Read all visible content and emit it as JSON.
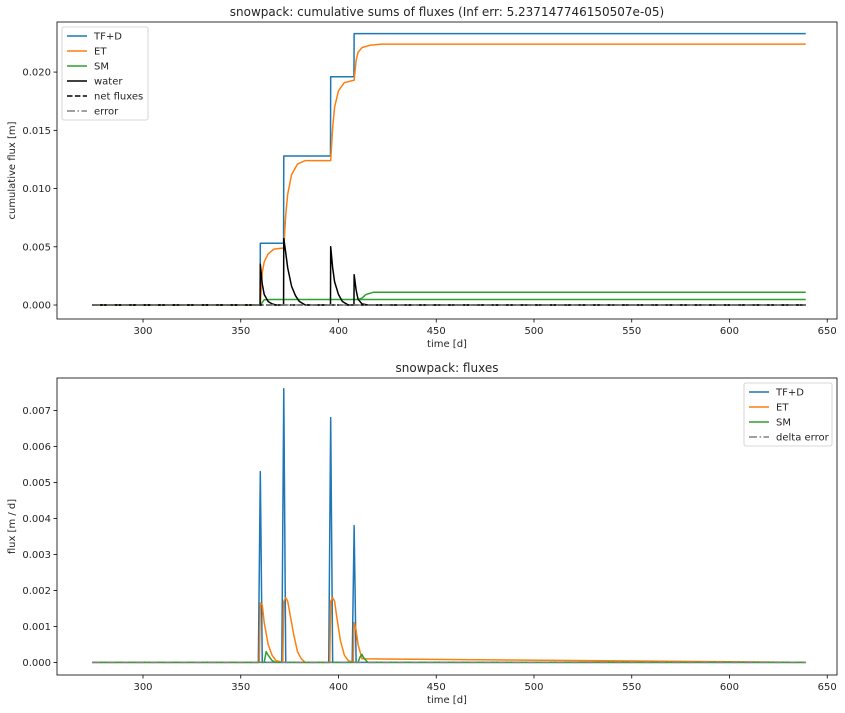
{
  "chart_data": [
    {
      "type": "line",
      "title": "snowpack: cumulative sums of fluxes (Inf err: 5.237147746150507e-05)",
      "xlabel": "time [d]",
      "ylabel": "cumulative flux [m]",
      "xlim": [
        256,
        655
      ],
      "ylim": [
        -0.0012,
        0.0243
      ],
      "xticks": [
        300,
        350,
        400,
        450,
        500,
        550,
        600,
        650
      ],
      "yticks": [
        0.0,
        0.005,
        0.01,
        0.015,
        0.02
      ],
      "ytick_labels": [
        "0.000",
        "0.005",
        "0.010",
        "0.015",
        "0.020"
      ],
      "grid": false,
      "legend_position": "upper left",
      "series": [
        {
          "name": "TF+D",
          "color": "#1f77b4",
          "dash": "solid",
          "x": [
            274,
            359.9,
            360,
            371.9,
            372,
            395.9,
            396,
            407.9,
            408,
            639
          ],
          "y": [
            0,
            0,
            0.0053,
            0.0053,
            0.0128,
            0.0128,
            0.0196,
            0.0196,
            0.0233,
            0.0233
          ]
        },
        {
          "name": "ET",
          "color": "#ff7f0e",
          "dash": "solid",
          "x": [
            274,
            359.9,
            360,
            361,
            362,
            364,
            367,
            371.9,
            372,
            373,
            374,
            376,
            379,
            383,
            395.9,
            396,
            397,
            398,
            400,
            403,
            407.9,
            408,
            409,
            410,
            412,
            416,
            422,
            430,
            639
          ],
          "y": [
            0,
            0,
            0,
            0.0028,
            0.0037,
            0.0044,
            0.0048,
            0.0049,
            0.0049,
            0.0077,
            0.0095,
            0.0112,
            0.0121,
            0.0124,
            0.0124,
            0.0124,
            0.0152,
            0.017,
            0.0184,
            0.0191,
            0.0193,
            0.0193,
            0.021,
            0.0217,
            0.0221,
            0.0223,
            0.0224,
            0.0224,
            0.0224
          ]
        },
        {
          "name": "SM",
          "color": "#2ca02c",
          "dash": "solid",
          "x": [
            274,
            360,
            362,
            366,
            639
          ],
          "y": [
            0,
            0,
            0.00045,
            0.00047,
            0.00047
          ],
          "x2": [
            410,
            412,
            414,
            418,
            639
          ],
          "y2": [
            0.00047,
            0.0006,
            0.0009,
            0.0011,
            0.0011
          ]
        },
        {
          "name": "water",
          "color": "#000000",
          "dash": "solid",
          "x": [
            274,
            359.9,
            360,
            361,
            362,
            364,
            366,
            368,
            371.9,
            372,
            373,
            374,
            376,
            378,
            380,
            383,
            395.9,
            396,
            397,
            398,
            400,
            402,
            405,
            407.9,
            408,
            409,
            410,
            412,
            415,
            639
          ],
          "y": [
            0,
            0,
            0.0035,
            0.0018,
            0.0009,
            0.0003,
            0.0001,
            0.0,
            0.0,
            0.0057,
            0.0045,
            0.0032,
            0.0016,
            0.0008,
            0.0003,
            0.0,
            0.0,
            0.005,
            0.0032,
            0.002,
            0.0009,
            0.0003,
            0.0,
            0.0,
            0.0026,
            0.0013,
            0.0005,
            0.0001,
            0.0,
            0.0
          ]
        },
        {
          "name": "net fluxes",
          "color": "#000000",
          "dash": "dashed",
          "x": [
            274,
            639
          ],
          "y": [
            0,
            0
          ]
        },
        {
          "name": "error",
          "color": "#808080",
          "dash": "dashdot",
          "x": [
            274,
            639
          ],
          "y": [
            0,
            0
          ]
        }
      ]
    },
    {
      "type": "line",
      "title": "snowpack: fluxes",
      "xlabel": "time [d]",
      "ylabel": "flux [m / d]",
      "xlim": [
        256,
        655
      ],
      "ylim": [
        -0.00035,
        0.0079
      ],
      "xticks": [
        300,
        350,
        400,
        450,
        500,
        550,
        600,
        650
      ],
      "yticks": [
        0.0,
        0.001,
        0.002,
        0.003,
        0.004,
        0.005,
        0.006,
        0.007
      ],
      "ytick_labels": [
        "0.000",
        "0.001",
        "0.002",
        "0.003",
        "0.004",
        "0.005",
        "0.006",
        "0.007"
      ],
      "grid": false,
      "legend_position": "upper right",
      "series": [
        {
          "name": "TF+D",
          "color": "#1f77b4",
          "dash": "solid",
          "x": [
            274,
            359,
            360,
            361,
            371,
            372,
            373,
            395,
            396,
            397,
            407,
            408,
            409,
            639
          ],
          "y": [
            0,
            0,
            0.0053,
            0,
            0,
            0.0076,
            0,
            0,
            0.0068,
            0,
            0,
            0.0038,
            0,
            0
          ]
        },
        {
          "name": "ET",
          "color": "#ff7f0e",
          "dash": "solid",
          "x": [
            274,
            359.5,
            360,
            361,
            362,
            364,
            366,
            368,
            371.5,
            372,
            373,
            374,
            375,
            377,
            379,
            381,
            383,
            395.5,
            396,
            397,
            398,
            399,
            401,
            403,
            405,
            407.5,
            408,
            409,
            410,
            412,
            639
          ],
          "y": [
            0,
            0,
            0.00165,
            0.0016,
            0.0011,
            0.0005,
            0.0002,
            5e-05,
            0,
            0.0017,
            0.0018,
            0.0017,
            0.0014,
            0.0008,
            0.0003,
            0.0001,
            0,
            0,
            0.0017,
            0.0018,
            0.0017,
            0.0013,
            0.0006,
            0.0002,
            5e-05,
            0,
            0.0011,
            0.0009,
            0.0005,
            0.0001,
            0
          ]
        },
        {
          "name": "SM",
          "color": "#2ca02c",
          "dash": "solid",
          "x": [
            274,
            362,
            363,
            364,
            366,
            368,
            410,
            411,
            412,
            413,
            415,
            639
          ],
          "y": [
            0,
            0,
            0.0003,
            0.0002,
            5e-05,
            0,
            0,
            0.00015,
            0.00022,
            0.00012,
            0,
            0
          ]
        },
        {
          "name": "delta error",
          "color": "#808080",
          "dash": "dashdot",
          "x": [
            274,
            639
          ],
          "y": [
            0,
            0
          ]
        }
      ]
    }
  ]
}
